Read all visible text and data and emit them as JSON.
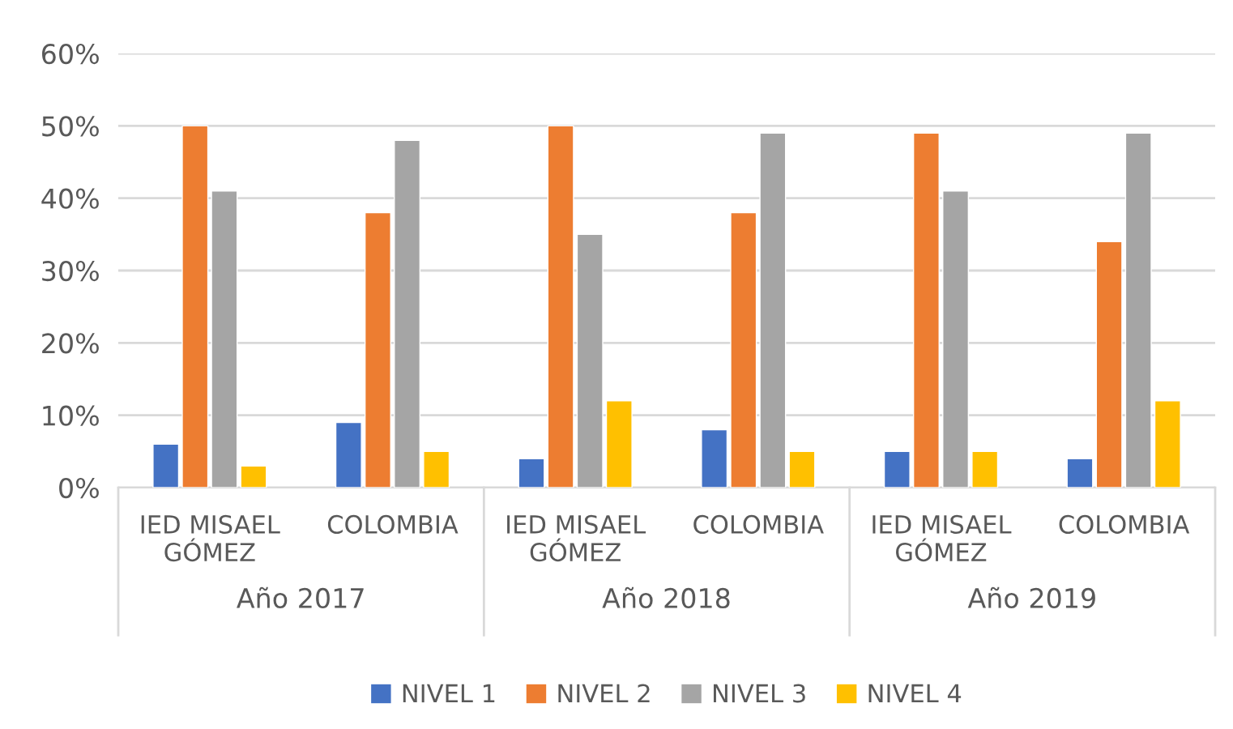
{
  "chart_data": {
    "type": "bar",
    "categories": [
      "IED MISAEL\nGÓMEZ",
      "COLOMBIA",
      "IED MISAEL\nGÓMEZ",
      "COLOMBIA",
      "IED MISAEL\nGÓMEZ",
      "COLOMBIA"
    ],
    "annotations": [
      "Año 2017",
      "Año 2018",
      "Año 2019"
    ],
    "series": [
      {
        "name": "NIVEL 1",
        "color": "#4472c4",
        "values": [
          6,
          9,
          4,
          8,
          5,
          4
        ]
      },
      {
        "name": "NIVEL 2",
        "color": "#ed7d31",
        "values": [
          50,
          38,
          50,
          38,
          49,
          34
        ]
      },
      {
        "name": "NIVEL 3",
        "color": "#a5a5a5",
        "values": [
          41,
          48,
          35,
          49,
          41,
          49
        ]
      },
      {
        "name": "NIVEL 4",
        "color": "#ffc000",
        "values": [
          3,
          5,
          12,
          5,
          5,
          12
        ]
      }
    ],
    "ylim": [
      0,
      60
    ],
    "yticks": [
      {
        "value": 0,
        "label": "0%"
      },
      {
        "value": 10,
        "label": "10%"
      },
      {
        "value": 20,
        "label": "20%"
      },
      {
        "value": 30,
        "label": "30%"
      },
      {
        "value": 40,
        "label": "40%"
      },
      {
        "value": 50,
        "label": "50%"
      },
      {
        "value": 60,
        "label": "60%"
      }
    ],
    "grid": "y",
    "legend": "bottom"
  }
}
